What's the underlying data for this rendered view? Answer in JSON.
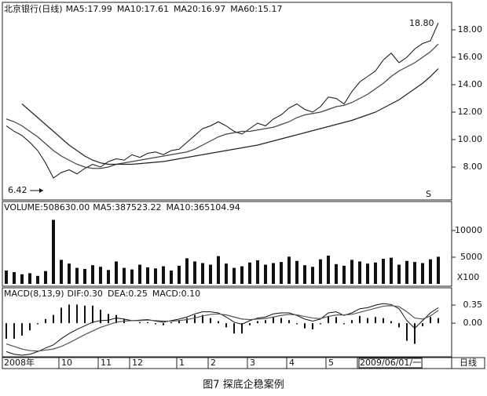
{
  "chart_data": [
    {
      "type": "line",
      "title": "北京银行(日线)",
      "indicators": [
        "MA5:17.99",
        "MA10:17.61",
        "MA20:16.97",
        "MA60:15.17"
      ],
      "ylim": [
        5.6,
        20
      ],
      "yticks": [
        {
          "value": 8,
          "label": "8.00"
        },
        {
          "value": 10,
          "label": "10.00"
        },
        {
          "value": 12,
          "label": "12.00"
        },
        {
          "value": 14,
          "label": "14.00"
        },
        {
          "value": 16,
          "label": "16.00"
        },
        {
          "value": 18,
          "label": "18.00"
        }
      ],
      "annotations": [
        "18.80",
        "6.42",
        "S"
      ],
      "series": [
        {
          "color": "#111111",
          "values": [
            11.0,
            10.6,
            10.3,
            9.8,
            9.2,
            8.3,
            7.2,
            7.6,
            7.8,
            7.5,
            7.9,
            8.2,
            8.0,
            8.4,
            8.6,
            8.5,
            8.9,
            8.7,
            9.0,
            9.1,
            8.9,
            9.2,
            9.3,
            9.8,
            10.3,
            10.8,
            11.0,
            11.3,
            11.0,
            10.6,
            10.4,
            10.8,
            11.2,
            11.0,
            11.5,
            11.8,
            12.3,
            12.6,
            12.2,
            12.0,
            12.4,
            13.1,
            13.0,
            12.6,
            13.5,
            14.2,
            14.6,
            15.0,
            15.8,
            16.3,
            15.6,
            16.0,
            16.6,
            17.0,
            17.2,
            18.5
          ]
        },
        {
          "color": "#444444",
          "values": [
            11.5,
            11.3,
            11.0,
            10.6,
            10.2,
            9.7,
            9.2,
            8.8,
            8.5,
            8.2,
            8.0,
            7.9,
            7.9,
            8.0,
            8.2,
            8.3,
            8.4,
            8.5,
            8.6,
            8.7,
            8.8,
            8.9,
            9.0,
            9.1,
            9.3,
            9.6,
            9.9,
            10.2,
            10.4,
            10.5,
            10.6,
            10.6,
            10.7,
            10.8,
            10.9,
            11.1,
            11.3,
            11.6,
            11.8,
            11.9,
            12.0,
            12.2,
            12.4,
            12.5,
            12.7,
            13.0,
            13.3,
            13.7,
            14.1,
            14.6,
            15.0,
            15.3,
            15.6,
            16.0,
            16.4,
            16.97
          ]
        },
        {
          "color": "#222222",
          "values": [
            null,
            null,
            12.6,
            12.1,
            11.6,
            11.1,
            10.6,
            10.1,
            9.6,
            9.2,
            8.8,
            8.5,
            8.3,
            8.2,
            8.2,
            8.2,
            8.2,
            8.25,
            8.3,
            8.35,
            8.4,
            8.5,
            8.6,
            8.7,
            8.8,
            8.9,
            9.0,
            9.1,
            9.2,
            9.3,
            9.4,
            9.5,
            9.6,
            9.75,
            9.9,
            10.05,
            10.2,
            10.35,
            10.5,
            10.65,
            10.8,
            10.95,
            11.1,
            11.25,
            11.4,
            11.6,
            11.8,
            12.0,
            12.3,
            12.6,
            12.9,
            13.3,
            13.7,
            14.1,
            14.6,
            15.17
          ]
        }
      ]
    },
    {
      "type": "bar",
      "title": "VOLUME:508630.00",
      "indicators": [
        "MA5:387523.22",
        "MA10:365104.94"
      ],
      "ylim": [
        0,
        14700
      ],
      "yticks": [
        5000,
        10000
      ],
      "unit_label": "X100",
      "color": "#111111",
      "values": [
        2500,
        2200,
        1800,
        2000,
        1500,
        2400,
        12000,
        4500,
        3800,
        3000,
        2800,
        3500,
        3200,
        2600,
        4200,
        3000,
        2700,
        3600,
        3100,
        2900,
        3300,
        2500,
        3400,
        4800,
        4200,
        3900,
        3600,
        5200,
        3800,
        3000,
        3300,
        4000,
        4400,
        3600,
        3900,
        4100,
        5100,
        4300,
        3500,
        3200,
        4600,
        5300,
        3700,
        3400,
        4500,
        4200,
        3800,
        4000,
        4700,
        4900,
        3600,
        4300,
        4100,
        3900,
        4600,
        5086
      ]
    },
    {
      "type": "macd",
      "title": "MACD(8,13,9)",
      "indicators": [
        "DIF:0.30",
        "DEA:0.25",
        "MACD:0.10"
      ],
      "ylim": [
        -0.65,
        0.67
      ],
      "yticks": [
        {
          "value": 0,
          "label": "0.00"
        },
        0.35
      ],
      "color": "#111111",
      "values": [
        -0.3,
        -0.3,
        -0.24,
        -0.14,
        -0.02,
        0.08,
        0.16,
        0.3,
        0.36,
        0.36,
        0.34,
        0.34,
        0.26,
        0.18,
        0.16,
        0.08,
        0,
        0.02,
        0.02,
        -0.02,
        -0.04,
        0.02,
        0.06,
        0.1,
        0.16,
        0.16,
        0.1,
        0.04,
        -0.08,
        -0.2,
        -0.2,
        -0.04,
        0.04,
        0.06,
        0.12,
        0.1,
        0.06,
        -0.02,
        -0.1,
        -0.12,
        -0.02,
        0.14,
        0.12,
        -0.02,
        0.06,
        0.14,
        0.1,
        0.12,
        0.1,
        0.04,
        -0.08,
        -0.34,
        -0.4,
        -0.06,
        0.12,
        0.1
      ],
      "series": [
        {
          "color": "#111111",
          "values": [
            -0.55,
            -0.6,
            -0.62,
            -0.6,
            -0.55,
            -0.48,
            -0.42,
            -0.3,
            -0.2,
            -0.12,
            -0.05,
            0.02,
            0.05,
            0.06,
            0.1,
            0.08,
            0.05,
            0.06,
            0.07,
            0.04,
            0.02,
            0.05,
            0.08,
            0.12,
            0.18,
            0.22,
            0.22,
            0.2,
            0.12,
            0.02,
            -0.02,
            0.05,
            0.1,
            0.12,
            0.18,
            0.2,
            0.2,
            0.15,
            0.08,
            0.04,
            0.08,
            0.2,
            0.22,
            0.15,
            0.2,
            0.28,
            0.3,
            0.35,
            0.38,
            0.36,
            0.28,
            0.05,
            -0.1,
            0.05,
            0.2,
            0.3
          ]
        },
        {
          "color": "#555555",
          "values": [
            -0.4,
            -0.45,
            -0.5,
            -0.53,
            -0.54,
            -0.52,
            -0.5,
            -0.45,
            -0.38,
            -0.3,
            -0.22,
            -0.15,
            -0.08,
            -0.03,
            0.02,
            0.04,
            0.05,
            0.05,
            0.06,
            0.05,
            0.04,
            0.04,
            0.05,
            0.07,
            0.1,
            0.14,
            0.17,
            0.18,
            0.16,
            0.12,
            0.08,
            0.07,
            0.08,
            0.09,
            0.12,
            0.15,
            0.17,
            0.16,
            0.13,
            0.1,
            0.09,
            0.13,
            0.16,
            0.16,
            0.17,
            0.21,
            0.25,
            0.29,
            0.33,
            0.34,
            0.32,
            0.22,
            0.1,
            0.08,
            0.14,
            0.25
          ]
        }
      ]
    }
  ],
  "date_axis": {
    "categories": [
      "2008年",
      null,
      null,
      null,
      null,
      null,
      null,
      "10",
      null,
      null,
      null,
      null,
      "11",
      null,
      null,
      null,
      "12",
      null,
      null,
      null,
      null,
      null,
      "1",
      null,
      null,
      null,
      "2",
      null,
      null,
      null,
      null,
      "3",
      null,
      null,
      null,
      null,
      "4",
      null,
      null,
      null,
      null,
      "5",
      null,
      null,
      null,
      "2009/06/01/一",
      null,
      null,
      null,
      null,
      null,
      null,
      null,
      null,
      null,
      null
    ],
    "period_label": "日线"
  },
  "caption": "图7   探底企稳案例"
}
